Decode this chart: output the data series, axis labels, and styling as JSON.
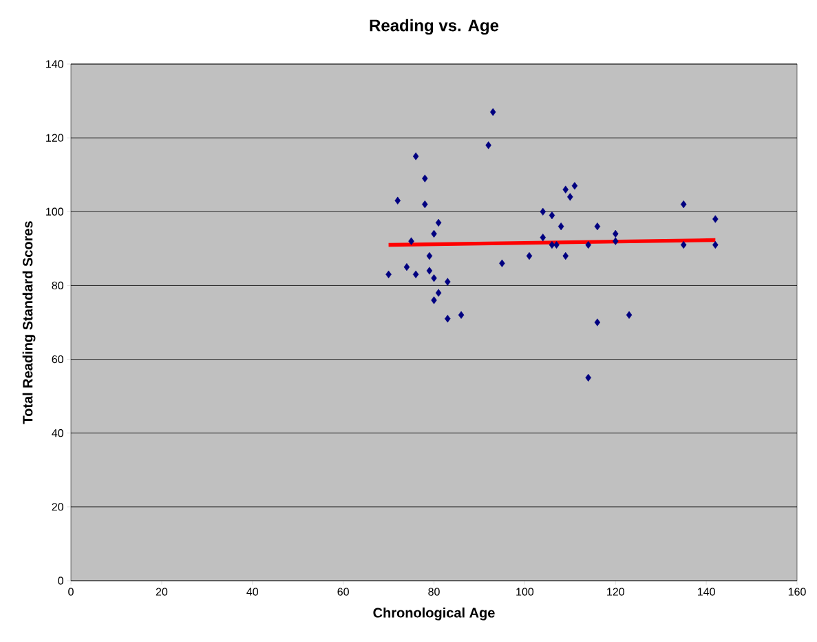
{
  "chart_data": {
    "type": "scatter",
    "title": "Reading vs. Age",
    "xlabel": "Chronological Age",
    "ylabel": "Total Reading Standard Scores",
    "xlim": [
      0,
      160
    ],
    "xticks": [
      0,
      20,
      40,
      60,
      80,
      100,
      120,
      140,
      160
    ],
    "ylim": [
      0,
      140
    ],
    "yticks": [
      0,
      20,
      40,
      60,
      80,
      100,
      120,
      140
    ],
    "grid": "y",
    "series": [
      {
        "color": "#000080",
        "marker": "diamond",
        "x": [
          70,
          72,
          74,
          75,
          76,
          76,
          78,
          78,
          79,
          79,
          80,
          80,
          80,
          81,
          81,
          83,
          83,
          86,
          92,
          93,
          95,
          101,
          104,
          104,
          106,
          106,
          107,
          108,
          109,
          109,
          110,
          111,
          114,
          114,
          116,
          116,
          120,
          120,
          123,
          135,
          135,
          142,
          142
        ],
        "values": [
          83,
          103,
          85,
          92,
          115,
          83,
          109,
          102,
          88,
          84,
          94,
          82,
          76,
          97,
          78,
          81,
          71,
          72,
          118,
          127,
          86,
          88,
          100,
          93,
          99,
          91,
          91,
          96,
          106,
          88,
          104,
          107,
          91,
          55,
          96,
          70,
          94,
          92,
          72,
          102,
          91,
          98,
          91
        ]
      },
      {
        "type": "line",
        "color": "#ff0000",
        "marker": "none",
        "line_style": "solid",
        "x": [
          70,
          142
        ],
        "values": [
          91,
          92.3
        ]
      }
    ]
  }
}
